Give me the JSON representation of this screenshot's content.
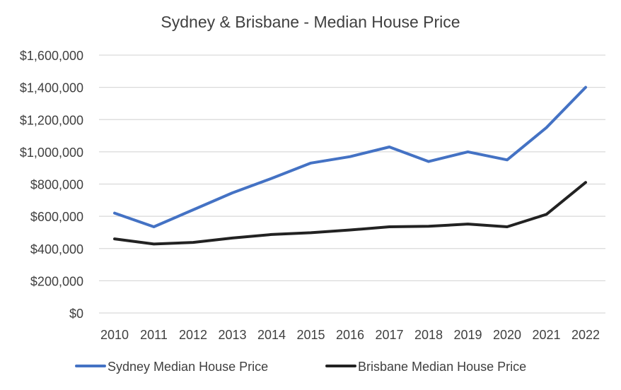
{
  "chart_data": {
    "type": "line",
    "title": "Sydney & Brisbane - Median House Price",
    "xlabel": "",
    "ylabel": "",
    "categories": [
      "2010",
      "2011",
      "2012",
      "2013",
      "2014",
      "2015",
      "2016",
      "2017",
      "2018",
      "2019",
      "2020",
      "2021",
      "2022"
    ],
    "ylim": [
      0,
      1600000
    ],
    "yticks": [
      0,
      200000,
      400000,
      600000,
      800000,
      1000000,
      1200000,
      1400000,
      1600000
    ],
    "ytick_labels": [
      "$0",
      "$200,000",
      "$400,000",
      "$600,000",
      "$800,000",
      "$1,000,000",
      "$1,200,000",
      "$1,400,000",
      "$1,600,000"
    ],
    "grid": true,
    "legend_position": "bottom",
    "series": [
      {
        "name": "Sydney Median House Price",
        "color": "#4472C4",
        "values": [
          620000,
          535000,
          640000,
          745000,
          835000,
          930000,
          970000,
          1030000,
          940000,
          1000000,
          950000,
          1150000,
          1400000
        ]
      },
      {
        "name": "Brisbane Median House Price",
        "color": "#222222",
        "values": [
          460000,
          428000,
          438000,
          465000,
          487000,
          498000,
          515000,
          535000,
          538000,
          552000,
          535000,
          612000,
          810000
        ]
      }
    ]
  }
}
